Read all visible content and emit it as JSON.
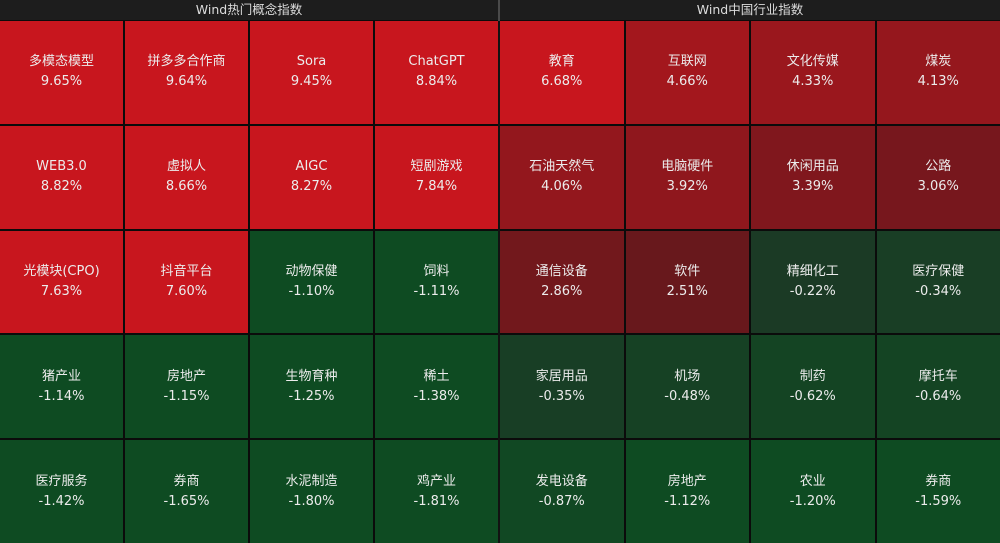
{
  "colors": {
    "up": "#c8161e",
    "down": "#0e4b22"
  },
  "chart_data": [
    {
      "type": "heatmap",
      "title": "Wind热门概念指数",
      "unit": "%",
      "labels": [
        "多模态模型",
        "拼多多合作商",
        "Sora",
        "ChatGPT",
        "WEB3.0",
        "虚拟人",
        "AIGC",
        "短剧游戏",
        "光模块(CPO)",
        "抖音平台",
        "动物保健",
        "饲料",
        "猪产业",
        "房地产",
        "生物育种",
        "稀土",
        "医疗服务",
        "券商",
        "水泥制造",
        "鸡产业"
      ],
      "values": [
        9.65,
        9.64,
        9.45,
        8.84,
        8.82,
        8.66,
        8.27,
        7.84,
        7.63,
        7.6,
        -1.1,
        -1.11,
        -1.14,
        -1.15,
        -1.25,
        -1.38,
        -1.42,
        -1.65,
        -1.8,
        -1.81
      ]
    },
    {
      "type": "heatmap",
      "title": "Wind中国行业指数",
      "unit": "%",
      "labels": [
        "教育",
        "互联网",
        "文化传媒",
        "煤炭",
        "石油天然气",
        "电脑硬件",
        "休闲用品",
        "公路",
        "通信设备",
        "软件",
        "精细化工",
        "医疗保健",
        "家居用品",
        "机场",
        "制药",
        "摩托车",
        "发电设备",
        "房地产",
        "农业",
        "券商"
      ],
      "values": [
        6.68,
        4.66,
        4.33,
        4.13,
        4.06,
        3.92,
        3.39,
        3.06,
        2.86,
        2.51,
        -0.22,
        -0.34,
        -0.35,
        -0.48,
        -0.62,
        -0.64,
        -0.87,
        -1.12,
        -1.2,
        -1.59
      ]
    }
  ]
}
